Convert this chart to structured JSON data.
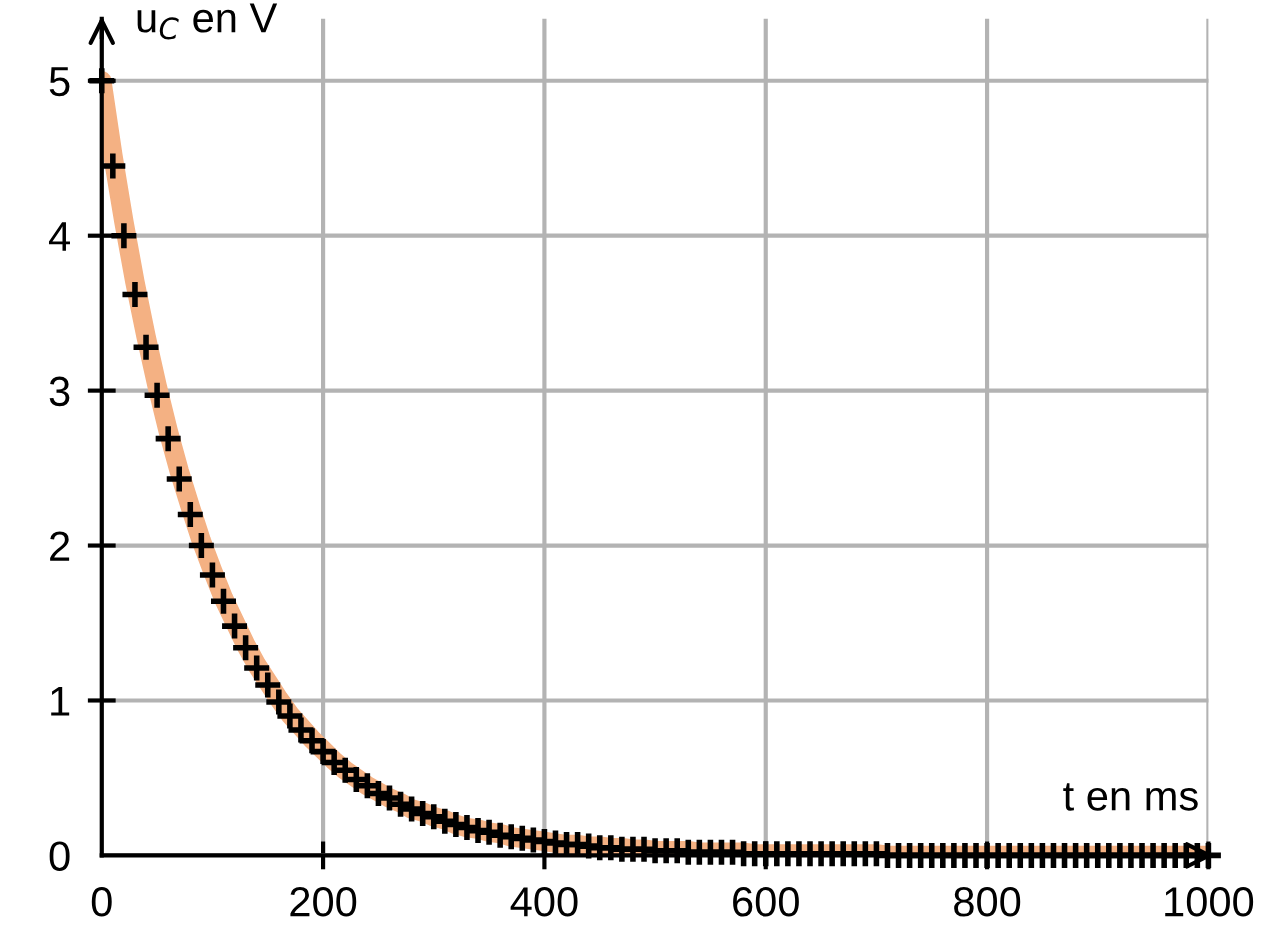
{
  "chart_data": {
    "type": "scatter",
    "xlabel": "t en ms",
    "ylabel": "u$_{C}$ en V",
    "xlim": [
      0,
      1000
    ],
    "ylim": [
      0,
      5.4
    ],
    "xticks": [
      0,
      200,
      400,
      600,
      800,
      1000
    ],
    "yticks": [
      0,
      1,
      2,
      3,
      4,
      5
    ],
    "grid": true,
    "marker": "cross",
    "x": [
      0,
      10,
      20,
      30,
      40,
      50,
      60,
      70,
      80,
      90,
      100,
      110,
      120,
      130,
      140,
      150,
      160,
      170,
      180,
      190,
      200,
      210,
      220,
      230,
      240,
      250,
      260,
      270,
      280,
      290,
      300,
      310,
      320,
      330,
      340,
      350,
      360,
      370,
      380,
      390,
      400,
      410,
      420,
      430,
      440,
      450,
      460,
      470,
      480,
      490,
      500,
      510,
      520,
      530,
      540,
      550,
      560,
      570,
      580,
      590,
      600,
      610,
      620,
      630,
      640,
      650,
      660,
      670,
      680,
      690,
      700,
      710,
      720,
      730,
      740,
      750,
      760,
      770,
      780,
      790,
      800,
      810,
      820,
      830,
      840,
      850,
      860,
      870,
      880,
      890,
      900,
      910,
      920,
      930,
      940,
      950,
      960,
      970,
      980,
      990,
      1000
    ],
    "series": [
      {
        "type": "line",
        "marker": "none",
        "color": "#f4b183",
        "values": [
          5.0,
          4.52,
          4.09,
          3.7,
          3.35,
          3.03,
          2.74,
          2.48,
          2.25,
          2.03,
          1.84,
          1.66,
          1.51,
          1.36,
          1.23,
          1.12,
          1.01,
          0.91,
          0.83,
          0.75,
          0.68,
          0.61,
          0.55,
          0.5,
          0.45,
          0.41,
          0.37,
          0.34,
          0.3,
          0.28,
          0.25,
          0.23,
          0.2,
          0.18,
          0.17,
          0.15,
          0.14,
          0.12,
          0.11,
          0.1,
          0.09,
          0.08,
          0.07,
          0.07,
          0.06,
          0.06,
          0.05,
          0.05,
          0.04,
          0.04,
          0.03,
          0.03,
          0.03,
          0.03,
          0.02,
          0.02,
          0.02,
          0.02,
          0.02,
          0.01,
          0.01,
          0.01,
          0.01,
          0.01,
          0.01,
          0.01,
          0.01,
          0.01,
          0.01,
          0.01,
          0.01,
          0,
          0,
          0,
          0,
          0,
          0,
          0,
          0,
          0,
          0,
          0,
          0,
          0,
          0,
          0,
          0,
          0,
          0,
          0,
          0,
          0,
          0,
          0,
          0,
          0,
          0,
          0,
          0,
          0,
          0
        ]
      },
      {
        "color": "#000000",
        "values": [
          5.0,
          4.45,
          4.0,
          3.62,
          3.28,
          2.97,
          2.69,
          2.43,
          2.2,
          2.0,
          1.81,
          1.64,
          1.48,
          1.34,
          1.21,
          1.1,
          0.99,
          0.9,
          0.81,
          0.74,
          0.67,
          0.6,
          0.55,
          0.49,
          0.45,
          0.4,
          0.37,
          0.33,
          0.3,
          0.27,
          0.25,
          0.22,
          0.2,
          0.18,
          0.16,
          0.15,
          0.13,
          0.12,
          0.11,
          0.1,
          0.09,
          0.08,
          0.07,
          0.07,
          0.06,
          0.05,
          0.05,
          0.04,
          0.04,
          0.04,
          0.03,
          0.03,
          0.03,
          0.02,
          0.02,
          0.02,
          0.02,
          0.02,
          0.01,
          0.01,
          0.01,
          0.01,
          0.01,
          0.01,
          0.01,
          0.01,
          0.01,
          0.01,
          0.01,
          0.01,
          0.01,
          0,
          0,
          0,
          0,
          0,
          0,
          0,
          0,
          0,
          0,
          0,
          0,
          0,
          0,
          0,
          0,
          0,
          0,
          0,
          0,
          0,
          0,
          0,
          0,
          0,
          0,
          0,
          0,
          0,
          0
        ]
      }
    ]
  }
}
